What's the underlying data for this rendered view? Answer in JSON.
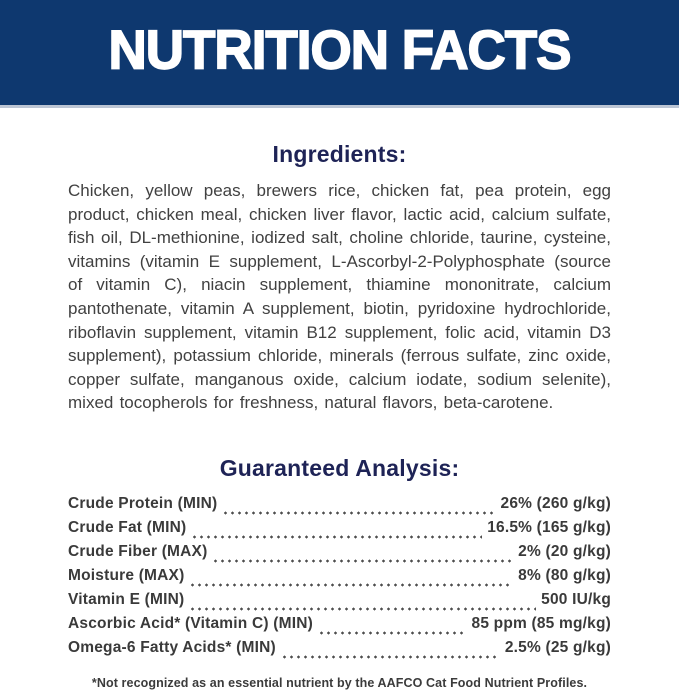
{
  "header": {
    "title": "NUTRITION FACTS"
  },
  "ingredients": {
    "heading": "Ingredients:",
    "text": "Chicken, yellow peas, brewers rice, chicken fat, pea protein, egg product, chicken meal, chicken liver flavor, lactic acid, calcium sulfate, fish oil, DL-methionine, iodized salt, choline chloride, taurine, cysteine, vitamins (vitamin E supplement, L-Ascorbyl-2-Polyphosphate (source of vitamin C), niacin supplement, thiamine mononitrate, calcium pantothenate, vitamin A supplement, biotin, pyridoxine hydrochloride, riboflavin supplement, vitamin B12 supplement, folic acid, vitamin D3 supplement), potassium chloride, minerals (ferrous sulfate, zinc oxide, copper sulfate, manganous oxide, calcium iodate, sodium selenite), mixed tocopherols for freshness, natural flavors, beta-carotene."
  },
  "analysis": {
    "heading": "Guaranteed Analysis:",
    "rows": [
      {
        "label": "Crude Protein (MIN)",
        "value": "26% (260 g/kg)"
      },
      {
        "label": "Crude Fat (MIN)",
        "value": "16.5% (165 g/kg)"
      },
      {
        "label": "Crude Fiber (MAX)",
        "value": "2% (20 g/kg)"
      },
      {
        "label": "Moisture (MAX)",
        "value": "8% (80 g/kg)"
      },
      {
        "label": "Vitamin E (MIN)",
        "value": "500 IU/kg"
      },
      {
        "label": "Ascorbic Acid* (Vitamin C) (MIN)",
        "value": "85 ppm (85 mg/kg)"
      },
      {
        "label": "Omega-6 Fatty Acids* (MIN)",
        "value": "2.5% (25 g/kg)"
      }
    ]
  },
  "footnote": "*Not recognized as an essential nutrient by the AAFCO Cat Food Nutrient Profiles.",
  "colors": {
    "banner_background": "#0e386f",
    "banner_text": "#ffffff",
    "banner_bottom_border": "#bcc5d4",
    "heading_navy": "#1e2356",
    "body_text": "#414141",
    "table_text": "#3a3a3a"
  }
}
